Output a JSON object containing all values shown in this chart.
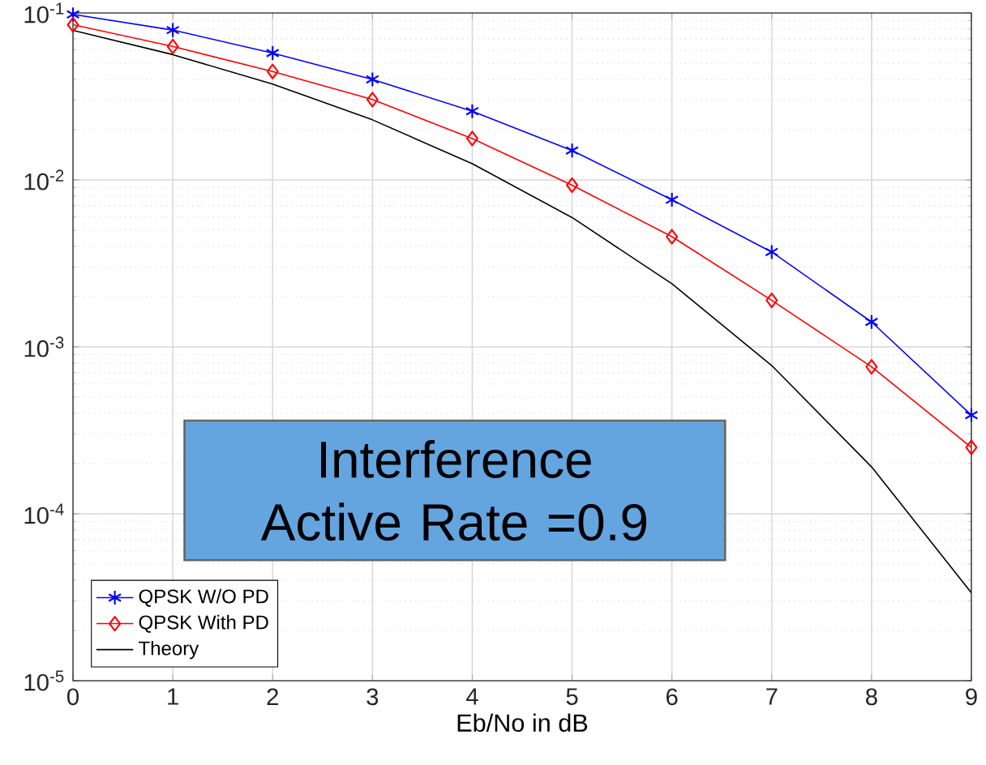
{
  "chart_data": {
    "type": "line",
    "xlabel": "Eb/No in dB",
    "x": [
      0,
      1,
      2,
      3,
      4,
      5,
      6,
      7,
      8,
      9
    ],
    "series": [
      {
        "name": "QPSK W/O PD",
        "color": "#0000ff",
        "marker": "cross",
        "values": [
          0.098,
          0.079,
          0.0575,
          0.04,
          0.0258,
          0.015,
          0.0076,
          0.0037,
          0.00141,
          0.00039
        ]
      },
      {
        "name": "QPSK With PD",
        "color": "#ff0000",
        "marker": "diamond",
        "values": [
          0.085,
          0.063,
          0.0446,
          0.0303,
          0.0177,
          0.0093,
          0.00457,
          0.0019,
          0.00076,
          0.00025
        ]
      },
      {
        "name": "Theory",
        "color": "#000000",
        "marker": "none",
        "values": [
          0.0786,
          0.0563,
          0.0375,
          0.0229,
          0.0125,
          0.00595,
          0.00239,
          0.000773,
          0.000191,
          3.36e-05
        ]
      }
    ],
    "xlim": [
      0,
      9
    ],
    "xticks": [
      0,
      1,
      2,
      3,
      4,
      5,
      6,
      7,
      8,
      9
    ],
    "ylim": [
      1e-05,
      0.1
    ],
    "yticks": [
      {
        "value": 1e-05,
        "label": "10$^{-5}$"
      },
      {
        "value": 0.0001,
        "label": "10$^{-4}$"
      },
      {
        "value": 0.001,
        "label": "10$^{-3}$"
      },
      {
        "value": 0.01,
        "label": "10$^{-2}$"
      },
      {
        "value": 0.1,
        "label": "10$^{-1}$"
      }
    ],
    "log": "y",
    "grid": true,
    "legend": "bottom left",
    "annotations": [
      "Interference Active Rate =0.9"
    ]
  }
}
